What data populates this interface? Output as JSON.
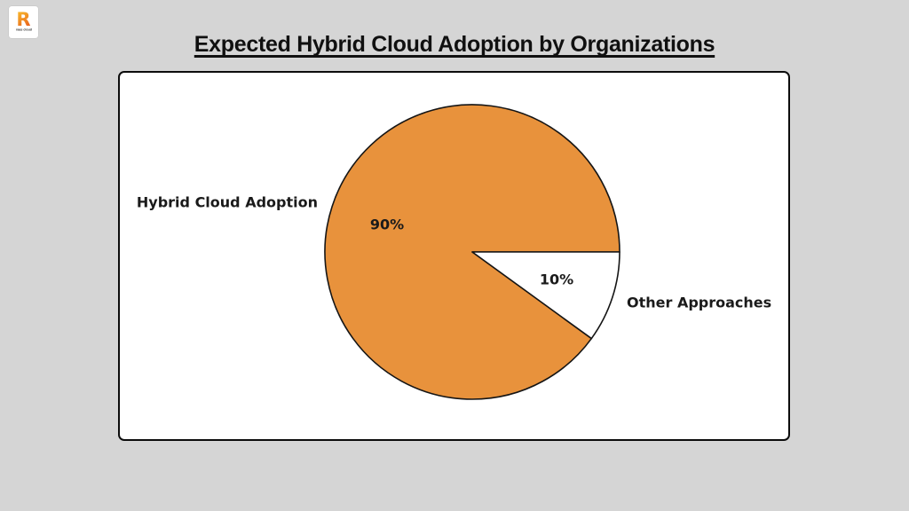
{
  "page": {
    "background": "#d5d5d5"
  },
  "logo": {
    "letter": "R",
    "text": "raas cloud"
  },
  "title": "Expected Hybrid Cloud Adoption by Organizations",
  "chart_data": {
    "type": "pie",
    "title": "Expected Hybrid Cloud Adoption by Organizations",
    "slices": [
      {
        "label": "Hybrid Cloud Adoption",
        "value": 90,
        "pct_label": "90%",
        "color": "#e8923c"
      },
      {
        "label": "Other Approaches",
        "value": 10,
        "pct_label": "10%",
        "color": "#ffffff"
      }
    ],
    "start_angle": 0,
    "counterclockwise": true,
    "stroke_color": "#151515",
    "label_distance": 1.1,
    "pct_distance": 0.6,
    "legend": "none"
  }
}
